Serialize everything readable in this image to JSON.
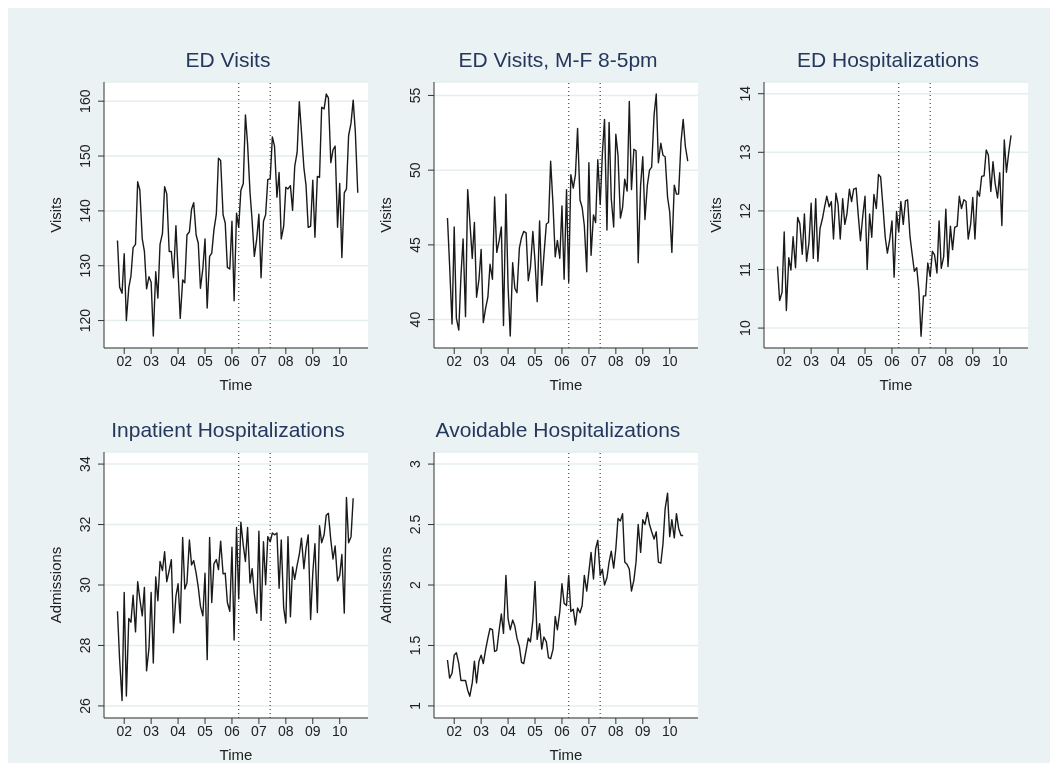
{
  "chart_data": [
    {
      "type": "line",
      "title": "ED Visits",
      "xlabel": "Time",
      "ylabel": "Visits",
      "grid": "y",
      "xlim": [
        2001.25,
        2011.05
      ],
      "xticks": [
        {
          "value": 2002,
          "label": "02"
        },
        {
          "value": 2003,
          "label": "03"
        },
        {
          "value": 2004,
          "label": "04"
        },
        {
          "value": 2005,
          "label": "05"
        },
        {
          "value": 2006,
          "label": "06"
        },
        {
          "value": 2007,
          "label": "07"
        },
        {
          "value": 2008,
          "label": "08"
        },
        {
          "value": 2009,
          "label": "09"
        },
        {
          "value": 2010,
          "label": "10"
        }
      ],
      "ylim": [
        115,
        163.5
      ],
      "yticks": [
        120,
        130,
        140,
        150,
        160
      ],
      "ref_lines": [
        {
          "axis": "x",
          "value": 2006.25,
          "color": "#555555",
          "line_style": "dotted"
        },
        {
          "axis": "x",
          "value": 2007.42,
          "color": "#555555",
          "line_style": "dotted"
        }
      ],
      "x": [
        2001.75,
        2001.83,
        2001.92,
        2002,
        2002.08,
        2002.17,
        2002.25,
        2002.33,
        2002.42,
        2002.5,
        2002.58,
        2002.67,
        2002.75,
        2002.83,
        2002.92,
        2003,
        2003.08,
        2003.17,
        2003.25,
        2003.33,
        2003.42,
        2003.5,
        2003.58,
        2003.67,
        2003.75,
        2003.83,
        2003.92,
        2004,
        2004.08,
        2004.17,
        2004.25,
        2004.33,
        2004.42,
        2004.5,
        2004.58,
        2004.67,
        2004.75,
        2004.83,
        2004.92,
        2005,
        2005.08,
        2005.17,
        2005.25,
        2005.33,
        2005.42,
        2005.5,
        2005.58,
        2005.67,
        2005.75,
        2005.83,
        2005.92,
        2006,
        2006.08,
        2006.17,
        2006.25,
        2006.33,
        2006.42,
        2006.5,
        2006.58,
        2006.67,
        2006.75,
        2006.83,
        2006.92,
        2007,
        2007.08,
        2007.17,
        2007.25,
        2007.33,
        2007.42,
        2007.5,
        2007.58,
        2007.67,
        2007.75,
        2007.83,
        2007.92,
        2008,
        2008.08,
        2008.17,
        2008.25,
        2008.33,
        2008.42,
        2008.5,
        2008.58,
        2008.67,
        2008.75,
        2008.83,
        2008.92,
        2009,
        2009.08,
        2009.17,
        2009.25,
        2009.33,
        2009.42,
        2009.5,
        2009.58,
        2009.67,
        2009.75,
        2009.83,
        2009.92,
        2010,
        2010.08,
        2010.17,
        2010.25,
        2010.33,
        2010.42,
        2010.5,
        2010.58,
        2010.67
      ],
      "series": [
        {
          "color": "#1a1a1a",
          "values": [
            134.6,
            126.1,
            125,
            132.2,
            120,
            126,
            128.1,
            133.3,
            133.9,
            145.3,
            143.8,
            134.9,
            132.6,
            125.8,
            128,
            127,
            117.2,
            128.9,
            124.1,
            133.9,
            135.9,
            144.4,
            143.1,
            132.6,
            132.6,
            127.8,
            137.3,
            128.8,
            120.4,
            127.4,
            126.9,
            135.6,
            136.2,
            140.3,
            141.5,
            135.6,
            134.1,
            125.9,
            129.5,
            134.9,
            122.3,
            131.7,
            132.3,
            136.5,
            139.4,
            149.6,
            149.2,
            139.3,
            137.8,
            129.7,
            129.4,
            138.1,
            123.6,
            139.6,
            137,
            143.7,
            145,
            157.5,
            152.2,
            143.4,
            138.1,
            131.7,
            134.9,
            139.4,
            127.8,
            138.1,
            139.3,
            145.7,
            145.9,
            153.5,
            151.8,
            142.5,
            147,
            134.9,
            137.2,
            144.3,
            144,
            144.6,
            140.1,
            148.1,
            150.7,
            159.9,
            154.4,
            147.9,
            144.6,
            137,
            137.2,
            145.6,
            135.2,
            146.3,
            146.1,
            158.9,
            158.6,
            161.3,
            160.6,
            148.8,
            151.1,
            151.8,
            137,
            145,
            131.5,
            143.3,
            144,
            153.7,
            156,
            160.2,
            154.4,
            143.3
          ]
        }
      ]
    },
    {
      "type": "line",
      "title": "ED Visits, M-F 8-5pm",
      "xlabel": "Time",
      "ylabel": "Visits",
      "grid": "y",
      "xlim": [
        2001.25,
        2011.05
      ],
      "xticks": [
        {
          "value": 2002,
          "label": "02"
        },
        {
          "value": 2003,
          "label": "03"
        },
        {
          "value": 2004,
          "label": "04"
        },
        {
          "value": 2005,
          "label": "05"
        },
        {
          "value": 2006,
          "label": "06"
        },
        {
          "value": 2007,
          "label": "07"
        },
        {
          "value": 2008,
          "label": "08"
        },
        {
          "value": 2009,
          "label": "09"
        },
        {
          "value": 2010,
          "label": "10"
        }
      ],
      "ylim": [
        38.1,
        55.9
      ],
      "yticks": [
        40,
        45,
        50,
        55
      ],
      "ref_lines": [
        {
          "axis": "x",
          "value": 2006.25,
          "color": "#555555",
          "line_style": "dotted"
        },
        {
          "axis": "x",
          "value": 2007.42,
          "color": "#555555",
          "line_style": "dotted"
        }
      ],
      "x": [
        2001.75,
        2001.83,
        2001.92,
        2002,
        2002.08,
        2002.17,
        2002.25,
        2002.33,
        2002.42,
        2002.5,
        2002.58,
        2002.67,
        2002.75,
        2002.83,
        2002.92,
        2003,
        2003.08,
        2003.17,
        2003.25,
        2003.33,
        2003.42,
        2003.5,
        2003.58,
        2003.67,
        2003.75,
        2003.83,
        2003.92,
        2004,
        2004.08,
        2004.17,
        2004.25,
        2004.33,
        2004.42,
        2004.5,
        2004.58,
        2004.67,
        2004.75,
        2004.83,
        2004.92,
        2005,
        2005.08,
        2005.17,
        2005.25,
        2005.33,
        2005.42,
        2005.5,
        2005.58,
        2005.67,
        2005.75,
        2005.83,
        2005.92,
        2006,
        2006.08,
        2006.17,
        2006.25,
        2006.33,
        2006.42,
        2006.5,
        2006.58,
        2006.67,
        2006.75,
        2006.83,
        2006.92,
        2007,
        2007.08,
        2007.17,
        2007.25,
        2007.33,
        2007.42,
        2007.5,
        2007.58,
        2007.67,
        2007.75,
        2007.83,
        2007.92,
        2008,
        2008.08,
        2008.17,
        2008.25,
        2008.33,
        2008.42,
        2008.5,
        2008.58,
        2008.67,
        2008.75,
        2008.83,
        2008.92,
        2009,
        2009.08,
        2009.17,
        2009.25,
        2009.33,
        2009.42,
        2009.5,
        2009.58,
        2009.67,
        2009.75,
        2009.83,
        2009.92,
        2010,
        2010.08,
        2010.17,
        2010.25,
        2010.33,
        2010.42,
        2010.5,
        2010.58,
        2010.67
      ],
      "series": [
        {
          "color": "#1a1a1a",
          "values": [
            46.8,
            43.6,
            39.7,
            46.2,
            40.1,
            39.3,
            42.9,
            45.4,
            40.2,
            48.7,
            46.6,
            44.1,
            46.5,
            41.5,
            42.7,
            44.7,
            39.8,
            40.8,
            41.5,
            43.7,
            42.7,
            48.2,
            44.5,
            45.3,
            46.2,
            39.6,
            48.4,
            42.2,
            38.9,
            43.8,
            42.1,
            41.8,
            44.8,
            45.5,
            45.9,
            45.8,
            42.6,
            43.5,
            45.9,
            43.9,
            41.2,
            46.6,
            42.3,
            44.3,
            46.4,
            46.5,
            50.6,
            47.6,
            44.2,
            45.3,
            44.1,
            47.6,
            42.7,
            48.7,
            42.5,
            49.7,
            48.8,
            49.7,
            52.8,
            48,
            47.5,
            46.3,
            43.2,
            50.5,
            44.3,
            47,
            46.5,
            50.7,
            47.7,
            51.1,
            53.4,
            46,
            53.2,
            48.1,
            46.2,
            52.4,
            51,
            46.8,
            47.5,
            49.4,
            48.6,
            54.6,
            48.7,
            51.4,
            51.3,
            43.8,
            49,
            50.9,
            46.7,
            49,
            50,
            50.2,
            53.7,
            55.1,
            50.5,
            51.8,
            51,
            50.9,
            48.2,
            47.2,
            44.5,
            49,
            48.4,
            48.4,
            51.9,
            53.4,
            51.6,
            50.6
          ]
        }
      ]
    },
    {
      "type": "line",
      "title": "ED Hospitalizations",
      "xlabel": "Time",
      "ylabel": "Visits",
      "grid": "y",
      "xlim": [
        2001.25,
        2011.05
      ],
      "xticks": [
        {
          "value": 2002,
          "label": "02"
        },
        {
          "value": 2003,
          "label": "03"
        },
        {
          "value": 2004,
          "label": "04"
        },
        {
          "value": 2005,
          "label": "05"
        },
        {
          "value": 2006,
          "label": "06"
        },
        {
          "value": 2007,
          "label": "07"
        },
        {
          "value": 2008,
          "label": "08"
        },
        {
          "value": 2009,
          "label": "09"
        },
        {
          "value": 2010,
          "label": "10"
        }
      ],
      "ylim": [
        9.66,
        14.2
      ],
      "yticks": [
        10,
        11,
        12,
        13,
        14
      ],
      "ref_lines": [
        {
          "axis": "x",
          "value": 2006.25,
          "color": "#555555",
          "line_style": "dotted"
        },
        {
          "axis": "x",
          "value": 2007.42,
          "color": "#555555",
          "line_style": "dotted"
        }
      ],
      "x": [
        2001.75,
        2001.83,
        2001.92,
        2002,
        2002.08,
        2002.17,
        2002.25,
        2002.33,
        2002.42,
        2002.5,
        2002.58,
        2002.67,
        2002.75,
        2002.83,
        2002.92,
        2003,
        2003.08,
        2003.17,
        2003.25,
        2003.33,
        2003.42,
        2003.5,
        2003.58,
        2003.67,
        2003.75,
        2003.83,
        2003.92,
        2004,
        2004.08,
        2004.17,
        2004.25,
        2004.33,
        2004.42,
        2004.5,
        2004.58,
        2004.67,
        2004.75,
        2004.83,
        2004.92,
        2005,
        2005.08,
        2005.17,
        2005.25,
        2005.33,
        2005.42,
        2005.5,
        2005.58,
        2005.67,
        2005.75,
        2005.83,
        2005.92,
        2006,
        2006.08,
        2006.17,
        2006.25,
        2006.33,
        2006.42,
        2006.5,
        2006.58,
        2006.67,
        2006.75,
        2006.83,
        2006.92,
        2007,
        2007.08,
        2007.17,
        2007.25,
        2007.33,
        2007.42,
        2007.5,
        2007.58,
        2007.67,
        2007.75,
        2007.83,
        2007.92,
        2008,
        2008.08,
        2008.17,
        2008.25,
        2008.33,
        2008.42,
        2008.5,
        2008.58,
        2008.67,
        2008.75,
        2008.83,
        2008.92,
        2009,
        2009.08,
        2009.17,
        2009.25,
        2009.33,
        2009.42,
        2009.5,
        2009.58,
        2009.67,
        2009.75,
        2009.83,
        2009.92,
        2010,
        2010.08,
        2010.17,
        2010.25,
        2010.33,
        2010.42
      ],
      "series": [
        {
          "color": "#1a1a1a",
          "values": [
            11.05,
            10.47,
            10.61,
            11.64,
            10.3,
            11.2,
            10.99,
            11.56,
            11.03,
            11.89,
            11.78,
            11.26,
            11.95,
            11.14,
            11.46,
            12.13,
            11.19,
            12.21,
            11.14,
            11.7,
            11.87,
            12.07,
            12.25,
            12.07,
            12.16,
            11.52,
            12.3,
            12.11,
            11.52,
            12.21,
            11.77,
            11.95,
            12.37,
            12.16,
            12.37,
            12.39,
            11.92,
            11.49,
            11.93,
            12.25,
            11,
            11.95,
            11.55,
            12.28,
            12.04,
            12.62,
            12.58,
            12.05,
            11.55,
            11.28,
            11.52,
            11.83,
            10.87,
            11.99,
            11.64,
            12.16,
            11.77,
            12.17,
            12.19,
            11.56,
            11.26,
            10.97,
            11.03,
            10.64,
            9.86,
            10.55,
            10.55,
            11.11,
            10.88,
            11.31,
            11.25,
            10.94,
            11.83,
            11.02,
            11.22,
            12.03,
            11.05,
            11.74,
            11.34,
            11.72,
            11.74,
            12.25,
            12.04,
            12.19,
            12.16,
            11.52,
            11.77,
            12.23,
            11.52,
            12.34,
            12.25,
            12.59,
            12.6,
            13.04,
            12.95,
            12.33,
            12.84,
            12.47,
            12.22,
            12.65,
            11.75,
            13.21,
            12.66,
            12.98,
            13.29
          ]
        }
      ]
    },
    {
      "type": "line",
      "title": "Inpatient Hospitalizations",
      "xlabel": "Time",
      "ylabel": "Admissions",
      "grid": "y",
      "xlim": [
        2001.25,
        2011.05
      ],
      "xticks": [
        {
          "value": 2002,
          "label": "02"
        },
        {
          "value": 2003,
          "label": "03"
        },
        {
          "value": 2004,
          "label": "04"
        },
        {
          "value": 2005,
          "label": "05"
        },
        {
          "value": 2006,
          "label": "06"
        },
        {
          "value": 2007,
          "label": "07"
        },
        {
          "value": 2008,
          "label": "08"
        },
        {
          "value": 2009,
          "label": "09"
        },
        {
          "value": 2010,
          "label": "10"
        }
      ],
      "ylim": [
        25.6,
        34.4
      ],
      "yticks": [
        26,
        28,
        30,
        32,
        34
      ],
      "ref_lines": [
        {
          "axis": "x",
          "value": 2006.25,
          "color": "#555555",
          "line_style": "dotted"
        },
        {
          "axis": "x",
          "value": 2007.42,
          "color": "#555555",
          "line_style": "dotted"
        }
      ],
      "x": [
        2001.75,
        2001.83,
        2001.92,
        2002,
        2002.08,
        2002.17,
        2002.25,
        2002.33,
        2002.42,
        2002.5,
        2002.58,
        2002.67,
        2002.75,
        2002.83,
        2002.92,
        2003,
        2003.08,
        2003.17,
        2003.25,
        2003.33,
        2003.42,
        2003.5,
        2003.58,
        2003.67,
        2003.75,
        2003.83,
        2003.92,
        2004,
        2004.08,
        2004.17,
        2004.25,
        2004.33,
        2004.42,
        2004.5,
        2004.58,
        2004.67,
        2004.75,
        2004.83,
        2004.92,
        2005,
        2005.08,
        2005.17,
        2005.25,
        2005.33,
        2005.42,
        2005.5,
        2005.58,
        2005.67,
        2005.75,
        2005.83,
        2005.92,
        2006,
        2006.08,
        2006.17,
        2006.25,
        2006.33,
        2006.42,
        2006.5,
        2006.58,
        2006.67,
        2006.75,
        2006.83,
        2006.92,
        2007,
        2007.08,
        2007.17,
        2007.25,
        2007.33,
        2007.42,
        2007.5,
        2007.58,
        2007.67,
        2007.75,
        2007.83,
        2007.92,
        2008,
        2008.08,
        2008.17,
        2008.25,
        2008.33,
        2008.42,
        2008.5,
        2008.58,
        2008.67,
        2008.75,
        2008.83,
        2008.92,
        2009,
        2009.08,
        2009.17,
        2009.25,
        2009.33,
        2009.42,
        2009.5,
        2009.58,
        2009.67,
        2009.75,
        2009.83,
        2009.92,
        2010,
        2010.08,
        2010.17,
        2010.25,
        2010.33,
        2010.42,
        2010.5
      ],
      "series": [
        {
          "color": "#1a1a1a",
          "values": [
            29.13,
            27.53,
            26.18,
            29.75,
            26.33,
            28.89,
            28.77,
            29.66,
            28.45,
            30.11,
            29.54,
            28.98,
            29.92,
            27.16,
            27.91,
            29.75,
            27.42,
            30.27,
            29.48,
            30.78,
            30.48,
            31.1,
            30.11,
            30.48,
            30.84,
            28.42,
            29.63,
            30.04,
            28.74,
            31.57,
            29.87,
            30.07,
            31.49,
            30.66,
            30.81,
            30.39,
            29.92,
            29.3,
            28.98,
            30.39,
            27.53,
            31.57,
            29.42,
            30.7,
            30.84,
            30.51,
            31.45,
            30.37,
            30.39,
            29.42,
            29.13,
            31.25,
            28.18,
            31.9,
            29.54,
            32.08,
            31.31,
            30.78,
            31.9,
            30.07,
            30.54,
            29.71,
            29.07,
            31.78,
            28.83,
            31.43,
            30.01,
            31.6,
            31.43,
            31.72,
            31.66,
            31.72,
            29.89,
            31.49,
            29.24,
            28.74,
            31.6,
            28.95,
            30.6,
            30.19,
            30.66,
            31.01,
            31.55,
            30.54,
            31.22,
            31.66,
            28.86,
            30.39,
            31.37,
            29.09,
            31.96,
            31.4,
            31.66,
            32.31,
            32.37,
            31.49,
            30.86,
            31.29,
            30.13,
            30.31,
            31.01,
            29.07,
            32.9,
            31.4,
            31.6,
            32.87
          ]
        }
      ]
    },
    {
      "type": "line",
      "title": "Avoidable Hospitalizations",
      "xlabel": "Time",
      "ylabel": "Admissions",
      "grid": "y",
      "xlim": [
        2001.25,
        2011.05
      ],
      "xticks": [
        {
          "value": 2002,
          "label": "02"
        },
        {
          "value": 2003,
          "label": "03"
        },
        {
          "value": 2004,
          "label": "04"
        },
        {
          "value": 2005,
          "label": "05"
        },
        {
          "value": 2006,
          "label": "06"
        },
        {
          "value": 2007,
          "label": "07"
        },
        {
          "value": 2008,
          "label": "08"
        },
        {
          "value": 2009,
          "label": "09"
        },
        {
          "value": 2010,
          "label": "10"
        }
      ],
      "ylim": [
        0.9,
        3.1
      ],
      "yticks": [
        1,
        1.5,
        2,
        2.5,
        3
      ],
      "ref_lines": [
        {
          "axis": "x",
          "value": 2006.25,
          "color": "#555555",
          "line_style": "dotted"
        },
        {
          "axis": "x",
          "value": 2007.42,
          "color": "#555555",
          "line_style": "dotted"
        }
      ],
      "x": [
        2001.75,
        2001.83,
        2001.92,
        2002,
        2002.08,
        2002.17,
        2002.25,
        2002.33,
        2002.42,
        2002.5,
        2002.58,
        2002.67,
        2002.75,
        2002.83,
        2002.92,
        2003,
        2003.08,
        2003.17,
        2003.25,
        2003.33,
        2003.42,
        2003.5,
        2003.58,
        2003.67,
        2003.75,
        2003.83,
        2003.92,
        2004,
        2004.08,
        2004.17,
        2004.25,
        2004.33,
        2004.42,
        2004.5,
        2004.58,
        2004.67,
        2004.75,
        2004.83,
        2004.92,
        2005,
        2005.08,
        2005.17,
        2005.25,
        2005.33,
        2005.42,
        2005.5,
        2005.58,
        2005.67,
        2005.75,
        2005.83,
        2005.92,
        2006,
        2006.08,
        2006.17,
        2006.25,
        2006.33,
        2006.42,
        2006.5,
        2006.58,
        2006.67,
        2006.75,
        2006.83,
        2006.92,
        2007,
        2007.08,
        2007.17,
        2007.25,
        2007.33,
        2007.42,
        2007.5,
        2007.58,
        2007.67,
        2007.75,
        2007.83,
        2007.92,
        2008,
        2008.08,
        2008.17,
        2008.25,
        2008.33,
        2008.42,
        2008.5,
        2008.58,
        2008.67,
        2008.75,
        2008.83,
        2008.92,
        2009,
        2009.08,
        2009.17,
        2009.25,
        2009.33,
        2009.42,
        2009.5,
        2009.58,
        2009.67,
        2009.75,
        2009.83,
        2009.92,
        2010,
        2010.08,
        2010.17,
        2010.25,
        2010.33,
        2010.42,
        2010.5
      ],
      "series": [
        {
          "color": "#1a1a1a",
          "values": [
            1.38,
            1.23,
            1.27,
            1.42,
            1.44,
            1.35,
            1.21,
            1.21,
            1.21,
            1.13,
            1.08,
            1.19,
            1.37,
            1.19,
            1.37,
            1.42,
            1.35,
            1.47,
            1.56,
            1.64,
            1.63,
            1.45,
            1.46,
            1.63,
            1.76,
            1.6,
            2.08,
            1.72,
            1.63,
            1.71,
            1.66,
            1.56,
            1.49,
            1.36,
            1.35,
            1.46,
            1.56,
            1.53,
            1.71,
            2.03,
            1.55,
            1.68,
            1.47,
            1.57,
            1.53,
            1.4,
            1.39,
            1.47,
            1.74,
            1.63,
            1.78,
            2.01,
            1.85,
            1.83,
            2.08,
            1.78,
            1.8,
            1.67,
            1.81,
            1.77,
            1.83,
            2.08,
            1.95,
            2.11,
            2.27,
            2.05,
            2.3,
            2.37,
            2.08,
            2.13,
            2.0,
            2.06,
            2.19,
            2.28,
            2.14,
            2.3,
            2.55,
            2.53,
            2.59,
            2.19,
            2.17,
            2.13,
            1.95,
            2.04,
            2.19,
            2.5,
            2.27,
            2.54,
            2.5,
            2.6,
            2.5,
            2.44,
            2.38,
            2.44,
            2.19,
            2.18,
            2.34,
            2.63,
            2.76,
            2.4,
            2.54,
            2.39,
            2.59,
            2.47,
            2.41,
            2.41
          ]
        }
      ]
    }
  ]
}
